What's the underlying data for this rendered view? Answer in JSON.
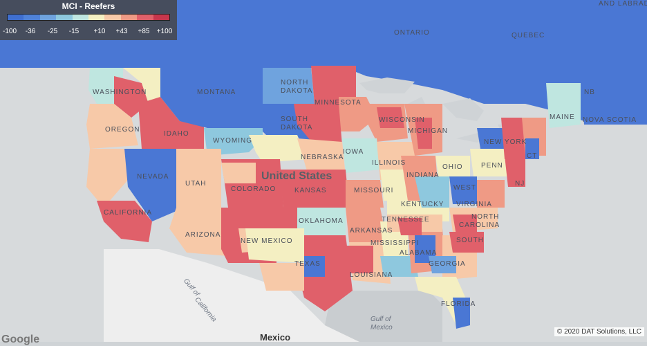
{
  "legend": {
    "title": "MCI - Reefers",
    "ticks": [
      "-100",
      "-36",
      "-25",
      "-15",
      "+10",
      "+43",
      "+85",
      "+100"
    ],
    "colors": [
      "#3f6fd0",
      "#4f82d8",
      "#6fa3de",
      "#8ec8de",
      "#bfe6e0",
      "#f4efc2",
      "#f7c9a8",
      "#ef9a85",
      "#e0606a",
      "#c8364c"
    ]
  },
  "labels": {
    "ontario": "ONTARIO",
    "quebec": "QUEBEC",
    "labrador": "AND LABRAD",
    "washington": "WASHINGTON",
    "montana": "MONTANA",
    "north_dakota_1": "NORTH",
    "north_dakota_2": "DAKOTA",
    "minnesota": "MINNESOTA",
    "oregon": "OREGON",
    "idaho": "IDAHO",
    "south_dakota_1": "SOUTH",
    "south_dakota_2": "DAKOTA",
    "wisconsin": "WISCONSIN",
    "michigan": "MICHIGAN",
    "wyoming": "WYOMING",
    "nebraska": "NEBRASKA",
    "iowa": "IOWA",
    "illinois": "ILLINOIS",
    "ohio": "OHIO",
    "penn": "PENN",
    "new_york": "NEW YORK",
    "maine": "MAINE",
    "nb": "NB",
    "nova_scotia": "NOVA SCOTIA",
    "ct": "CT",
    "nj": "NJ",
    "nevada": "NEVADA",
    "utah": "UTAH",
    "colorado": "COLORADO",
    "kansas": "KANSAS",
    "united_states": "United States",
    "missouri": "MISSOURI",
    "indiana": "INDIANA",
    "kentucky": "KENTUCKY",
    "west": "WEST",
    "virginia": "VIRGINIA",
    "california": "CALIFORNIA",
    "arizona": "ARIZONA",
    "new_mexico": "NEW MEXICO",
    "oklahoma": "OKLAHOMA",
    "arkansas": "ARKANSAS",
    "tennessee": "TENNESSEE",
    "north_carolina_1": "NORTH",
    "north_carolina_2": "CAROLINA",
    "south": "SOUTH",
    "mississippi": "MISSISSIPPI",
    "alabama": "ALABAMA",
    "georgia": "GEORGIA",
    "texas": "TEXAS",
    "louisiana": "LOUISIANA",
    "florida": "FLORIDA",
    "gulf_cal_1": "Gulf of",
    "gulf_cal_2": "California",
    "gulf_mex_1": "Gulf of",
    "gulf_mex_2": "Mexico",
    "mexico": "Mexico"
  },
  "copyright": "© 2020 DAT Solutions, LLC",
  "google": "Google"
}
